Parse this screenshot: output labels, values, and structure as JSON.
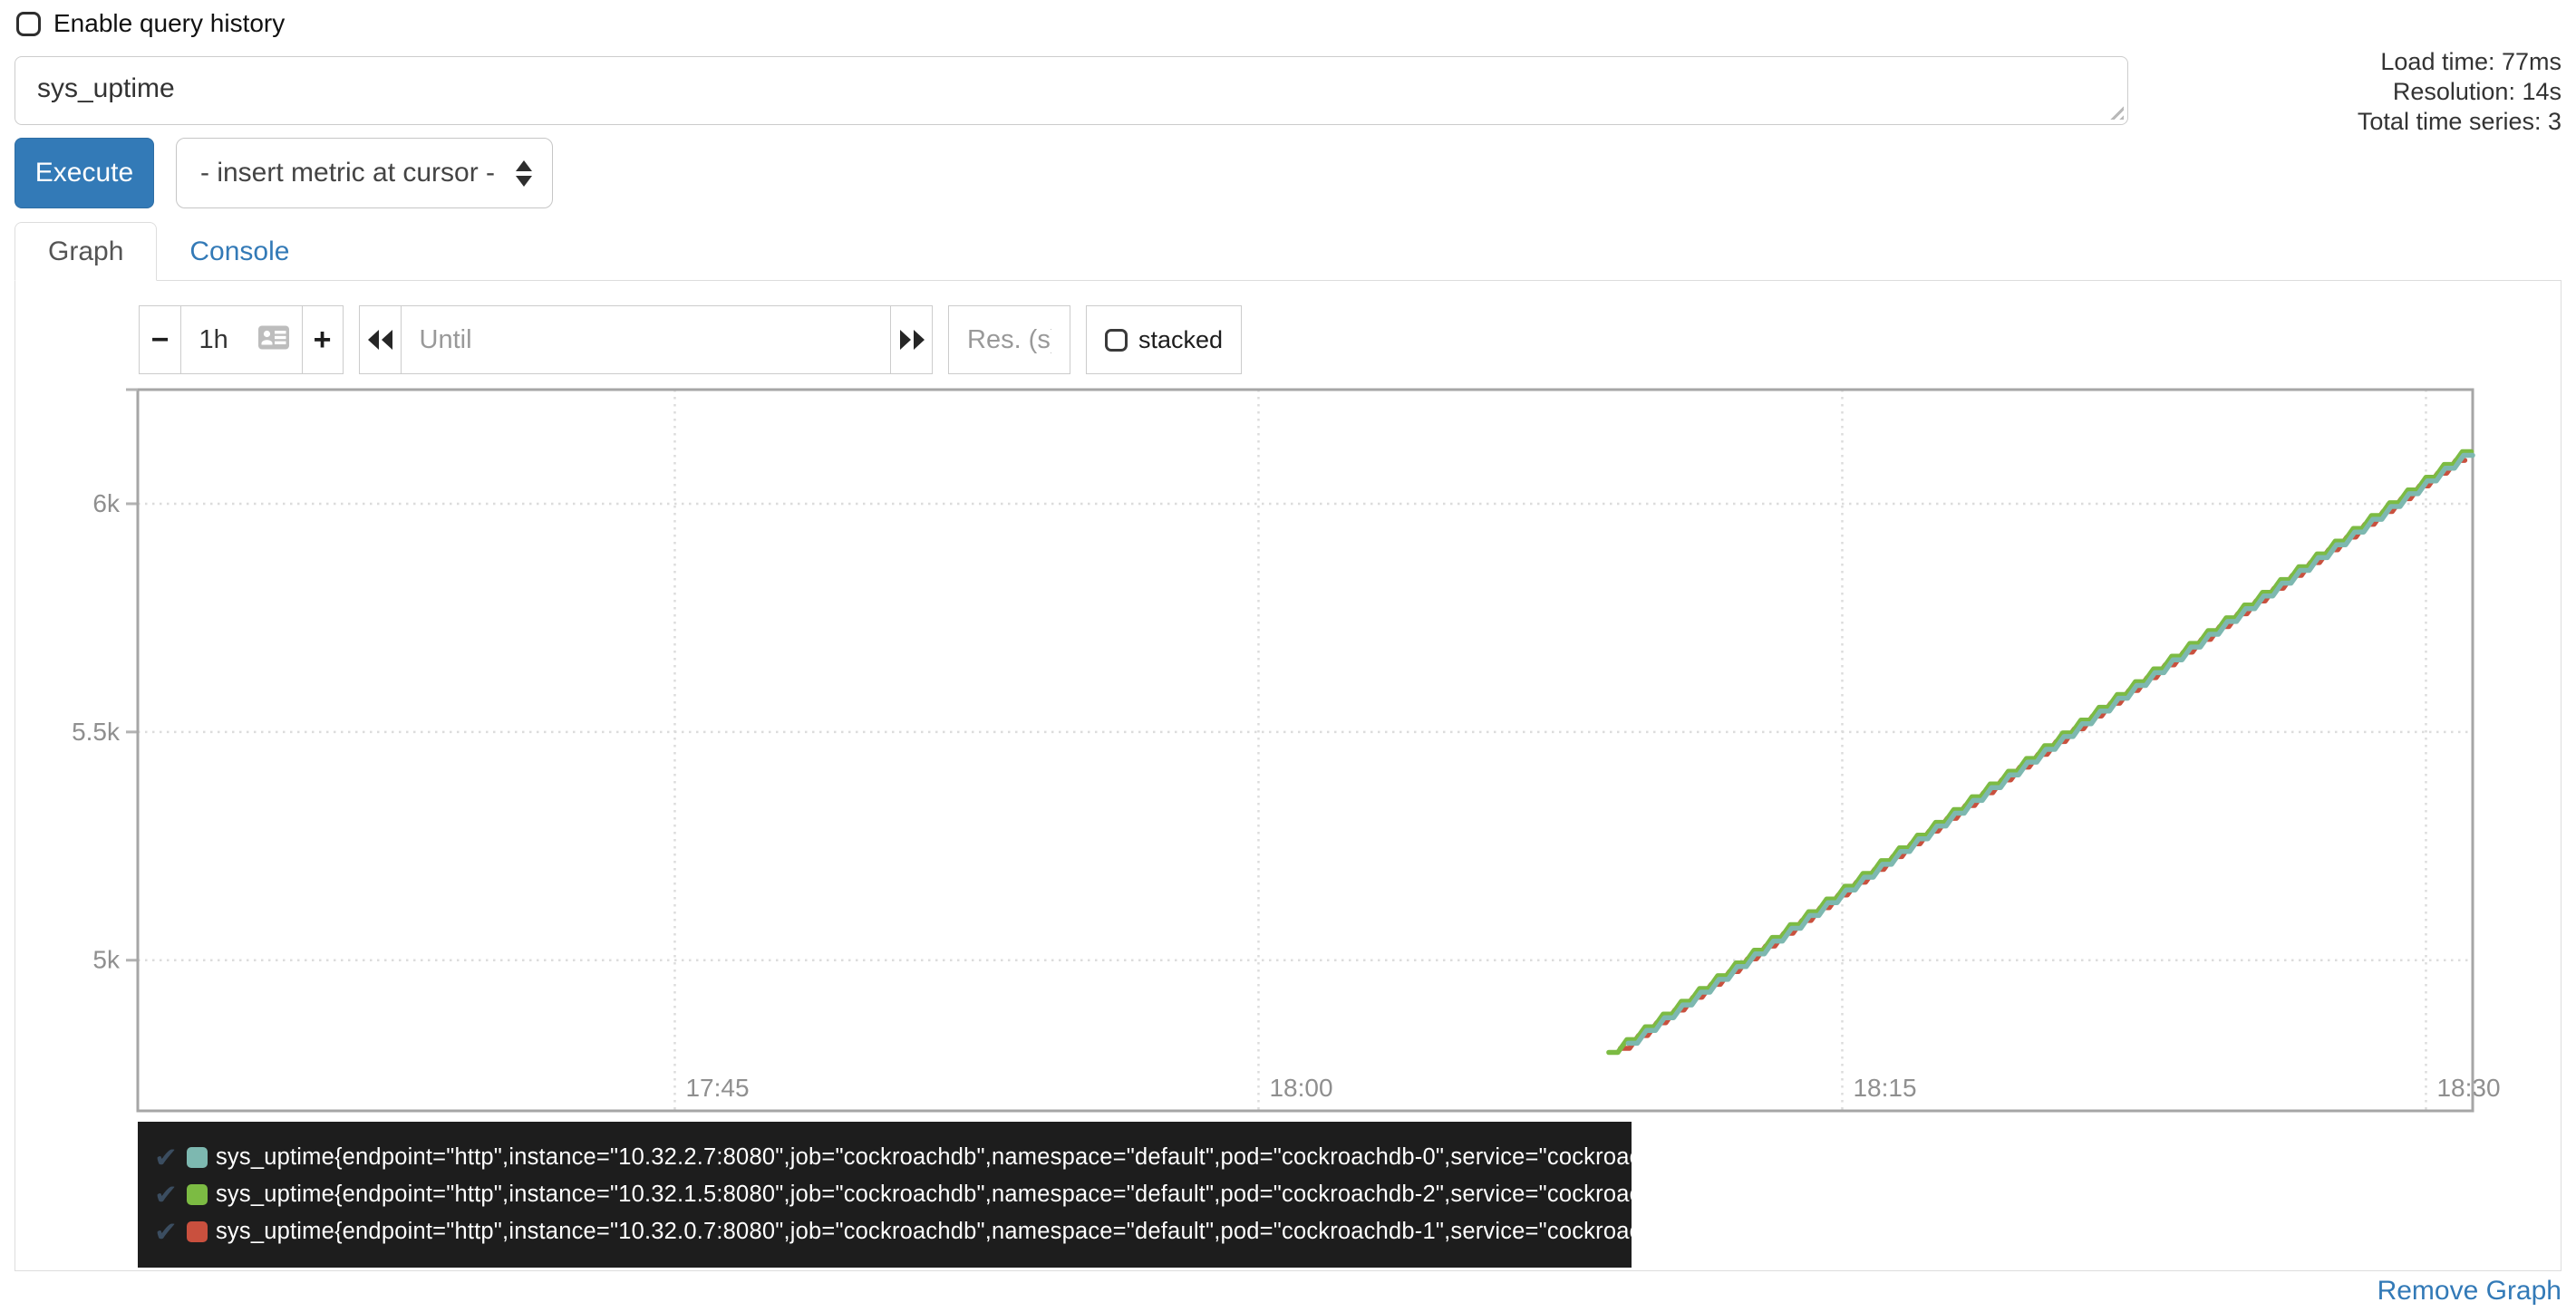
{
  "header": {
    "enable_query_history": "Enable query history",
    "load_time": "Load time: 77ms",
    "resolution": "Resolution: 14s",
    "total_time_series": "Total time series: 3"
  },
  "query": {
    "value": "sys_uptime"
  },
  "toolbar": {
    "execute": "Execute",
    "metric_select": "- insert metric at cursor -"
  },
  "tabs": {
    "graph": "Graph",
    "console": "Console"
  },
  "graph_controls": {
    "shrink_label": "−",
    "grow_label": "+",
    "range_value": "1h",
    "until_placeholder": "Until",
    "res_placeholder": "Res. (s)",
    "stacked_label": "stacked"
  },
  "chart_data": {
    "type": "line",
    "title": "",
    "xlabel": "",
    "ylabel": "",
    "grid": true,
    "legend_position": "bottom",
    "x_domain_minutes": [
      1051.2,
      1111.2
    ],
    "y_domain": [
      4670,
      6250
    ],
    "x_ticks": [
      {
        "label": "17:45",
        "minutes": 1065
      },
      {
        "label": "18:00",
        "minutes": 1080
      },
      {
        "label": "18:15",
        "minutes": 1095
      },
      {
        "label": "18:30",
        "minutes": 1110
      }
    ],
    "y_ticks": [
      {
        "label": "5k",
        "value": 5000
      },
      {
        "label": "5.5k",
        "value": 5500
      },
      {
        "label": "6k",
        "value": 6000
      }
    ],
    "series": [
      {
        "name": "sys_uptime pod cockroachdb-0 (10.32.2.7:8080)",
        "color": "#7db8b0",
        "start_minutes": 1089.5,
        "end_minutes": 1111.2,
        "start_value": 4818,
        "end_value": 6120,
        "sample_interval_s": 14,
        "counter_update_s": 28,
        "slope_per_s": 1
      },
      {
        "name": "sys_uptime pod cockroachdb-2 (10.32.1.5:8080)",
        "color": "#7cbb43",
        "start_minutes": 1089.0,
        "end_minutes": 1111.2,
        "start_value": 4798,
        "end_value": 6114,
        "sample_interval_s": 14,
        "counter_update_s": 28,
        "slope_per_s": 1
      },
      {
        "name": "sys_uptime pod cockroachdb-1 (10.32.0.7:8080)",
        "color": "#c9503e",
        "start_minutes": 1089.3,
        "end_minutes": 1111.2,
        "start_value": 4807,
        "end_value": 6117,
        "sample_interval_s": 14,
        "counter_update_s": 28,
        "slope_per_s": 1
      }
    ]
  },
  "legend": {
    "items": [
      {
        "check": "✔",
        "color": "#7db8b0",
        "label": "sys_uptime{endpoint=\"http\",instance=\"10.32.2.7:8080\",job=\"cockroachdb\",namespace=\"default\",pod=\"cockroachdb-0\",service=\"cockroachdb\"}"
      },
      {
        "check": "✔",
        "color": "#7cbb43",
        "label": "sys_uptime{endpoint=\"http\",instance=\"10.32.1.5:8080\",job=\"cockroachdb\",namespace=\"default\",pod=\"cockroachdb-2\",service=\"cockroachdb\"}"
      },
      {
        "check": "✔",
        "color": "#c9503e",
        "label": "sys_uptime{endpoint=\"http\",instance=\"10.32.0.7:8080\",job=\"cockroachdb\",namespace=\"default\",pod=\"cockroachdb-1\",service=\"cockroachdb\"}"
      }
    ]
  },
  "footer": {
    "remove_graph": "Remove Graph"
  },
  "colors": {
    "accent": "#337ab7",
    "legend_background": "#1d1d1d",
    "axis_label": "#8f8f8f",
    "frame": "#a6a6a6",
    "gridline": "#dcdcdc"
  }
}
